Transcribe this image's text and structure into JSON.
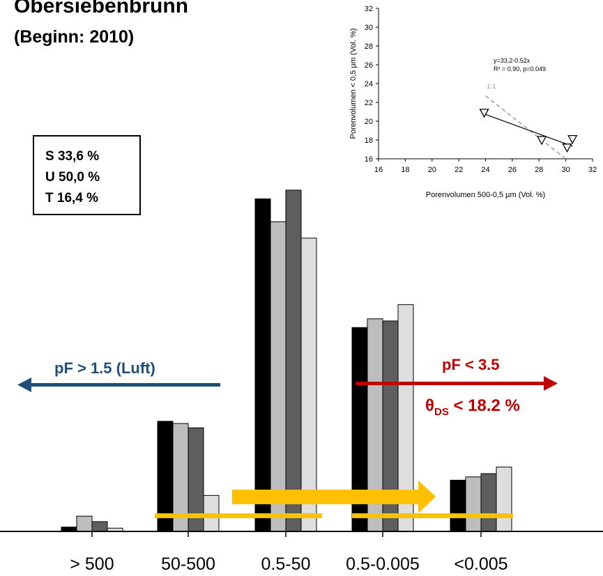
{
  "header": {
    "title": "Obersiebenbrunn",
    "subtitle": "(Beginn: 2010)"
  },
  "texture_box": {
    "lines": [
      "S 33,6 %",
      "U 50,0 %",
      "T 16,4 %"
    ]
  },
  "annotations": {
    "left_arrow_label": "pF > 1.5 (Luft)",
    "right_arrow_label": "pF < 3.5",
    "theta_label_main": "θ",
    "theta_label_sub": "DS",
    "theta_label_rest": " < 18.2 %"
  },
  "colors": {
    "series": [
      "#000000",
      "#bdbdbd",
      "#5e5e5e",
      "#dedede"
    ],
    "air_arrow": "#1f4e79",
    "water_arrow": "#c00000",
    "highlight": "#ffc000",
    "trend_dashed": "#b0b0b0"
  },
  "chart_data": [
    {
      "type": "bar",
      "categories": [
        "> 500",
        "50-500",
        "0.5-50",
        "0.5-0.005",
        "<0.005"
      ],
      "series": [
        {
          "values": [
            0.4,
            10.1,
            30.5,
            18.7,
            4.7
          ]
        },
        {
          "values": [
            1.4,
            9.9,
            28.4,
            19.5,
            5.0
          ]
        },
        {
          "values": [
            0.9,
            9.5,
            31.3,
            19.3,
            5.3
          ]
        },
        {
          "values": [
            0.3,
            3.3,
            26.9,
            20.8,
            5.9
          ]
        }
      ],
      "ylim": [
        0,
        35
      ]
    },
    {
      "type": "scatter",
      "points": [
        {
          "x": 23.9,
          "y": 20.9
        },
        {
          "x": 28.2,
          "y": 18.0
        },
        {
          "x": 30.1,
          "y": 17.2
        },
        {
          "x": 30.5,
          "y": 18.1
        }
      ],
      "trend": {
        "intercept": 33.2,
        "slope": -0.52,
        "x_range": [
          23.9,
          30.5
        ]
      },
      "reference_line_label": "1:1",
      "reference_line": {
        "x_range": [
          24,
          30
        ]
      },
      "equation": "y=33,2-0.52x",
      "r2_text": "R² = 0.90, p=0.049",
      "xlabel": "Porenvolumen 500-0,5 µm (Vol. %)",
      "ylabel": "Porenvolumen < 0,5 µm (Vol. %)",
      "xlim": [
        16,
        32
      ],
      "ylim": [
        16,
        32
      ],
      "xticks": [
        "16",
        "18",
        "20",
        "22",
        "24",
        "26",
        "28",
        "30",
        "32"
      ],
      "yticks": [
        "16",
        "18",
        "20",
        "22",
        "24",
        "26",
        "28",
        "30",
        "32"
      ]
    }
  ]
}
